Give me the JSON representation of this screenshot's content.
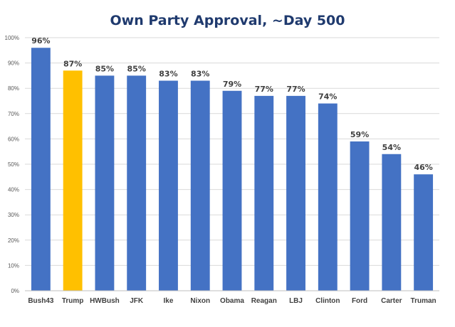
{
  "chart_data": {
    "type": "bar",
    "title": "Own Party Approval, ~Day 500",
    "xlabel": "",
    "ylabel": "",
    "categories": [
      "Bush43",
      "Trump",
      "HWBush",
      "JFK",
      "Ike",
      "Nixon",
      "Obama",
      "Reagan",
      "LBJ",
      "Clinton",
      "Ford",
      "Carter",
      "Truman"
    ],
    "values": [
      96,
      87,
      85,
      85,
      83,
      83,
      79,
      77,
      77,
      74,
      59,
      54,
      46
    ],
    "data_labels": [
      "96%",
      "87%",
      "85%",
      "85%",
      "83%",
      "83%",
      "79%",
      "77%",
      "77%",
      "74%",
      "59%",
      "54%",
      "46%"
    ],
    "ylim": [
      0,
      100
    ],
    "yticks": [
      0,
      10,
      20,
      30,
      40,
      50,
      60,
      70,
      80,
      90,
      100
    ],
    "ytick_labels": [
      "0%",
      "10%",
      "20%",
      "30%",
      "40%",
      "50%",
      "60%",
      "70%",
      "80%",
      "90%",
      "100%"
    ],
    "grid": true,
    "legend": "none",
    "colors": {
      "default_bar": "#4472c4",
      "highlight_bar": "#ffc000",
      "highlight_category": "Trump",
      "title": "#1f3a6e"
    }
  }
}
